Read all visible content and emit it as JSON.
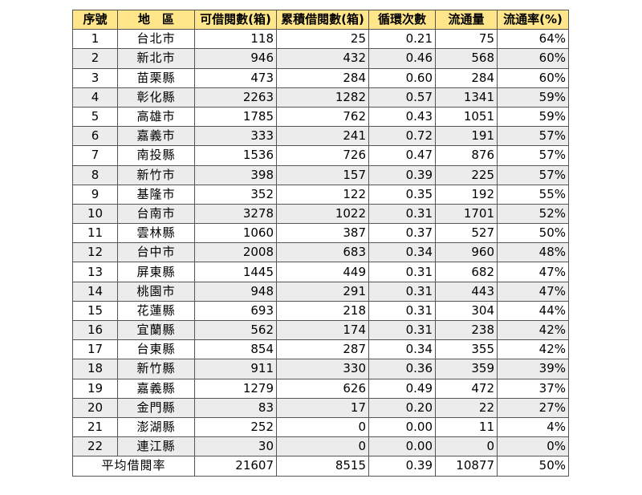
{
  "headers": [
    "序號",
    "地　區",
    "可借閱數(箱)",
    "累積借閱數(箱)",
    "循環次數",
    "流通量",
    "流通率(%)"
  ],
  "rows": [
    {
      "no": "1",
      "region": "台北市",
      "available": "118",
      "cumulative": "25",
      "cycles": "0.21",
      "circulation": "75",
      "rate": "64%"
    },
    {
      "no": "2",
      "region": "新北市",
      "available": "946",
      "cumulative": "432",
      "cycles": "0.46",
      "circulation": "568",
      "rate": "60%"
    },
    {
      "no": "3",
      "region": "苗栗縣",
      "available": "473",
      "cumulative": "284",
      "cycles": "0.60",
      "circulation": "284",
      "rate": "60%"
    },
    {
      "no": "4",
      "region": "彰化縣",
      "available": "2263",
      "cumulative": "1282",
      "cycles": "0.57",
      "circulation": "1341",
      "rate": "59%"
    },
    {
      "no": "5",
      "region": "高雄市",
      "available": "1785",
      "cumulative": "762",
      "cycles": "0.43",
      "circulation": "1051",
      "rate": "59%"
    },
    {
      "no": "6",
      "region": "嘉義市",
      "available": "333",
      "cumulative": "241",
      "cycles": "0.72",
      "circulation": "191",
      "rate": "57%"
    },
    {
      "no": "7",
      "region": "南投縣",
      "available": "1536",
      "cumulative": "726",
      "cycles": "0.47",
      "circulation": "876",
      "rate": "57%"
    },
    {
      "no": "8",
      "region": "新竹市",
      "available": "398",
      "cumulative": "157",
      "cycles": "0.39",
      "circulation": "225",
      "rate": "57%"
    },
    {
      "no": "9",
      "region": "基隆市",
      "available": "352",
      "cumulative": "122",
      "cycles": "0.35",
      "circulation": "192",
      "rate": "55%"
    },
    {
      "no": "10",
      "region": "台南市",
      "available": "3278",
      "cumulative": "1022",
      "cycles": "0.31",
      "circulation": "1701",
      "rate": "52%"
    },
    {
      "no": "11",
      "region": "雲林縣",
      "available": "1060",
      "cumulative": "387",
      "cycles": "0.37",
      "circulation": "527",
      "rate": "50%"
    },
    {
      "no": "12",
      "region": "台中市",
      "available": "2008",
      "cumulative": "683",
      "cycles": "0.34",
      "circulation": "960",
      "rate": "48%"
    },
    {
      "no": "13",
      "region": "屏東縣",
      "available": "1445",
      "cumulative": "449",
      "cycles": "0.31",
      "circulation": "682",
      "rate": "47%"
    },
    {
      "no": "14",
      "region": "桃園市",
      "available": "948",
      "cumulative": "291",
      "cycles": "0.31",
      "circulation": "443",
      "rate": "47%"
    },
    {
      "no": "15",
      "region": "花蓮縣",
      "available": "693",
      "cumulative": "218",
      "cycles": "0.31",
      "circulation": "304",
      "rate": "44%"
    },
    {
      "no": "16",
      "region": "宜蘭縣",
      "available": "562",
      "cumulative": "174",
      "cycles": "0.31",
      "circulation": "238",
      "rate": "42%"
    },
    {
      "no": "17",
      "region": "台東縣",
      "available": "854",
      "cumulative": "287",
      "cycles": "0.34",
      "circulation": "355",
      "rate": "42%"
    },
    {
      "no": "18",
      "region": "新竹縣",
      "available": "911",
      "cumulative": "330",
      "cycles": "0.36",
      "circulation": "359",
      "rate": "39%"
    },
    {
      "no": "19",
      "region": "嘉義縣",
      "available": "1279",
      "cumulative": "626",
      "cycles": "0.49",
      "circulation": "472",
      "rate": "37%"
    },
    {
      "no": "20",
      "region": "金門縣",
      "available": "83",
      "cumulative": "17",
      "cycles": "0.20",
      "circulation": "22",
      "rate": "27%"
    },
    {
      "no": "21",
      "region": "澎湖縣",
      "available": "252",
      "cumulative": "0",
      "cycles": "0.00",
      "circulation": "11",
      "rate": "4%"
    },
    {
      "no": "22",
      "region": "連江縣",
      "available": "30",
      "cumulative": "0",
      "cycles": "0.00",
      "circulation": "0",
      "rate": "0%"
    }
  ],
  "total": {
    "label": "平均借閱率",
    "available": "21607",
    "cumulative": "8515",
    "cycles": "0.39",
    "circulation": "10877",
    "rate": "50%"
  },
  "colors": {
    "header_bg": "#ffe68a",
    "alt_row_bg": "#ececec",
    "border": "#555555"
  }
}
